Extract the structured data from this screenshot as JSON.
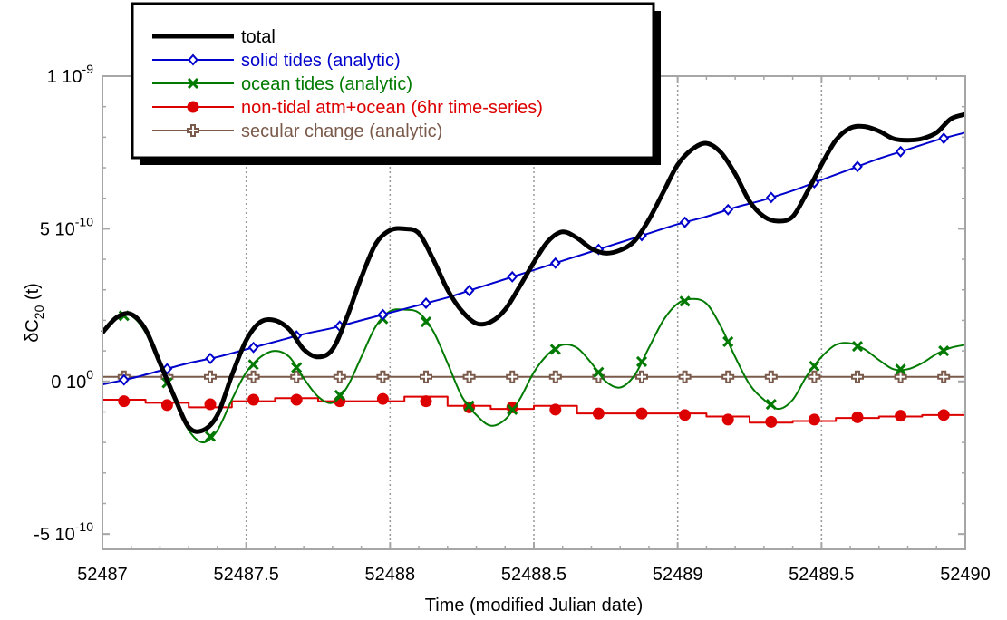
{
  "chart_data": {
    "type": "line",
    "title": "",
    "xlabel": "Time (modified Julian date)",
    "ylabel": {
      "base": "δC",
      "sub": "20",
      "suffix": " (t)"
    },
    "xlim": [
      52487,
      52490
    ],
    "ylim": [
      -5.5e-10,
      1e-09
    ],
    "x_ticks": [
      52487,
      52487.5,
      52488,
      52488.5,
      52489,
      52489.5,
      52490
    ],
    "x_tick_labels": [
      "52487",
      "52487.5",
      "52488",
      "52488.5",
      "52489",
      "52489.5",
      "52490"
    ],
    "y_ticks": [
      -5e-10,
      0,
      5e-10,
      1e-09
    ],
    "y_tick_labels": [
      {
        "mant": "-5 10",
        "exp": "-10"
      },
      {
        "mant": "0 10",
        "exp": "0"
      },
      {
        "mant": "5 10",
        "exp": "-10"
      },
      {
        "mant": "1 10",
        "exp": "-9"
      }
    ],
    "grid": "vertical dotted at x ticks",
    "legend_position": "top-left",
    "series": [
      {
        "name": "total",
        "color": "#000000",
        "marker": "none",
        "x": [
          52487.0,
          52487.05,
          52487.1,
          52487.15,
          52487.2,
          52487.25,
          52487.3,
          52487.35,
          52487.4,
          52487.45,
          52487.5,
          52487.55,
          52487.6,
          52487.65,
          52487.7,
          52487.75,
          52487.8,
          52487.85,
          52487.9,
          52487.95,
          52488.0,
          52488.05,
          52488.1,
          52488.15,
          52488.2,
          52488.25,
          52488.3,
          52488.35,
          52488.4,
          52488.45,
          52488.5,
          52488.55,
          52488.6,
          52488.65,
          52488.7,
          52488.75,
          52488.8,
          52488.85,
          52488.9,
          52488.95,
          52489.0,
          52489.05,
          52489.1,
          52489.15,
          52489.2,
          52489.25,
          52489.3,
          52489.35,
          52489.4,
          52489.45,
          52489.5,
          52489.55,
          52489.6,
          52489.65,
          52489.7,
          52489.75,
          52489.8,
          52489.85,
          52489.9,
          52489.95,
          52490.0
        ],
        "values": [
          1.6e-10,
          2.1e-10,
          2.2e-10,
          1.7e-10,
          6e-11,
          -5e-11,
          -1.5e-10,
          -1.6e-10,
          -1.1e-10,
          2e-11,
          1.35e-10,
          1.95e-10,
          2e-10,
          1.7e-10,
          1.05e-10,
          8e-11,
          1.05e-10,
          2.1e-10,
          3.4e-10,
          4.5e-10,
          4.95e-10,
          5e-10,
          4.85e-10,
          4e-10,
          3e-10,
          2.3e-10,
          1.9e-10,
          1.95e-10,
          2.35e-10,
          3.1e-10,
          3.9e-10,
          4.6e-10,
          4.9e-10,
          4.7e-10,
          4.35e-10,
          4.2e-10,
          4.3e-10,
          4.6e-10,
          5.3e-10,
          6.2e-10,
          7.1e-10,
          7.6e-10,
          7.8e-10,
          7.5e-10,
          6.8e-10,
          5.9e-10,
          5.4e-10,
          5.25e-10,
          5.4e-10,
          6.2e-10,
          7.1e-10,
          7.9e-10,
          8.3e-10,
          8.35e-10,
          8.2e-10,
          7.95e-10,
          7.9e-10,
          7.95e-10,
          8.15e-10,
          8.6e-10,
          8.75e-10
        ]
      },
      {
        "name": "solid tides (analytic)",
        "color": "#0000cc",
        "marker": "diamond",
        "x": [
          52487.0,
          52487.1,
          52487.2,
          52487.3,
          52487.4,
          52487.5,
          52487.6,
          52487.7,
          52487.8,
          52487.9,
          52488.0,
          52488.1,
          52488.2,
          52488.3,
          52488.4,
          52488.5,
          52488.6,
          52488.7,
          52488.8,
          52488.9,
          52489.0,
          52489.1,
          52489.2,
          52489.3,
          52489.4,
          52489.5,
          52489.6,
          52489.7,
          52489.8,
          52489.9,
          52490.0
        ],
        "values": [
          -1e-11,
          1e-11,
          3.5e-11,
          6e-11,
          8e-11,
          1.05e-10,
          1.3e-10,
          1.55e-10,
          1.75e-10,
          2e-10,
          2.25e-10,
          2.5e-10,
          2.75e-10,
          3.05e-10,
          3.35e-10,
          3.65e-10,
          3.95e-10,
          4.25e-10,
          4.55e-10,
          4.85e-10,
          5.15e-10,
          5.4e-10,
          5.7e-10,
          5.95e-10,
          6.25e-10,
          6.6e-10,
          6.95e-10,
          7.3e-10,
          7.6e-10,
          7.9e-10,
          8.15e-10
        ],
        "marker_x": [
          52487.075,
          52487.225,
          52487.375,
          52487.525,
          52487.675,
          52487.825,
          52487.975,
          52488.125,
          52488.275,
          52488.425,
          52488.575,
          52488.725,
          52488.875,
          52489.025,
          52489.175,
          52489.325,
          52489.475,
          52489.625,
          52489.775,
          52489.925
        ]
      },
      {
        "name": "ocean tides (analytic)",
        "color": "#007a00",
        "marker": "x",
        "x": [
          52487.0,
          52487.05,
          52487.1,
          52487.15,
          52487.2,
          52487.25,
          52487.3,
          52487.35,
          52487.4,
          52487.45,
          52487.5,
          52487.55,
          52487.6,
          52487.65,
          52487.7,
          52487.75,
          52487.8,
          52487.85,
          52487.9,
          52487.95,
          52488.0,
          52488.05,
          52488.1,
          52488.15,
          52488.2,
          52488.25,
          52488.3,
          52488.35,
          52488.4,
          52488.45,
          52488.5,
          52488.55,
          52488.6,
          52488.65,
          52488.7,
          52488.75,
          52488.8,
          52488.85,
          52488.9,
          52488.95,
          52489.0,
          52489.05,
          52489.1,
          52489.15,
          52489.2,
          52489.25,
          52489.3,
          52489.35,
          52489.4,
          52489.45,
          52489.5,
          52489.55,
          52489.6,
          52489.65,
          52489.7,
          52489.75,
          52489.8,
          52489.85,
          52489.9,
          52489.95,
          52490.0
        ],
        "values": [
          1.65e-10,
          2.15e-10,
          2.15e-10,
          1.6e-10,
          5e-11,
          -6e-11,
          -1.6e-10,
          -2e-10,
          -1.6e-10,
          -6e-11,
          3e-11,
          8e-11,
          1e-10,
          8e-11,
          1e-11,
          -5e-11,
          -7e-11,
          -2e-11,
          8e-11,
          1.8e-10,
          2.3e-10,
          2.35e-10,
          2.25e-10,
          1.65e-10,
          6e-11,
          -5e-11,
          -1.1e-10,
          -1.45e-10,
          -1.25e-10,
          -6e-11,
          3e-11,
          9e-11,
          1.2e-10,
          1.1e-10,
          6e-11,
          0,
          -2e-11,
          2e-11,
          1.1e-10,
          2e-10,
          2.55e-10,
          2.7e-10,
          2.55e-10,
          1.8e-10,
          8e-11,
          -1e-11,
          -6e-11,
          -9e-11,
          -6e-11,
          2e-11,
          8e-11,
          1.2e-10,
          1.25e-10,
          1.05e-10,
          7e-11,
          4e-11,
          4e-11,
          6e-11,
          9e-11,
          1.1e-10,
          1.2e-10
        ],
        "marker_x": [
          52487.075,
          52487.225,
          52487.375,
          52487.525,
          52487.675,
          52487.825,
          52487.975,
          52488.125,
          52488.275,
          52488.425,
          52488.575,
          52488.725,
          52488.875,
          52489.025,
          52489.175,
          52489.325,
          52489.475,
          52489.625,
          52489.775,
          52489.925
        ]
      },
      {
        "name": "non-tidal atm+ocean (6hr time-series)",
        "color": "#dd0000",
        "marker": "circle",
        "x": [
          52487.0,
          52487.15,
          52487.3,
          52487.45,
          52487.6,
          52487.75,
          52487.9,
          52488.05,
          52488.2,
          52488.35,
          52488.5,
          52488.65,
          52488.8,
          52488.95,
          52489.1,
          52489.25,
          52489.4,
          52489.55,
          52489.7,
          52489.85,
          52490.0
        ],
        "values": [
          -6e-11,
          -7e-11,
          -8.5e-11,
          -6.5e-11,
          -5.5e-11,
          -6.5e-11,
          -6.5e-11,
          -5e-11,
          -8e-11,
          -9e-11,
          -8e-11,
          -1.05e-10,
          -1.05e-10,
          -1.05e-10,
          -1.15e-10,
          -1.35e-10,
          -1.3e-10,
          -1.2e-10,
          -1.15e-10,
          -1.1e-10,
          -1.1e-10
        ],
        "marker_x": [
          52487.075,
          52487.225,
          52487.375,
          52487.525,
          52487.675,
          52487.825,
          52487.975,
          52488.125,
          52488.275,
          52488.425,
          52488.575,
          52488.725,
          52488.875,
          52489.025,
          52489.175,
          52489.325,
          52489.475,
          52489.625,
          52489.775,
          52489.925
        ]
      },
      {
        "name": "secular change (analytic)",
        "color": "#7a5a4a",
        "marker": "cross-circle",
        "x": [
          52487.0,
          52490.0
        ],
        "values": [
          1.5e-11,
          1.5e-11
        ],
        "marker_x": [
          52487.075,
          52487.225,
          52487.375,
          52487.525,
          52487.675,
          52487.825,
          52487.975,
          52488.125,
          52488.275,
          52488.425,
          52488.575,
          52488.725,
          52488.875,
          52489.025,
          52489.175,
          52489.325,
          52489.475,
          52489.625,
          52489.775,
          52489.925
        ]
      }
    ]
  }
}
